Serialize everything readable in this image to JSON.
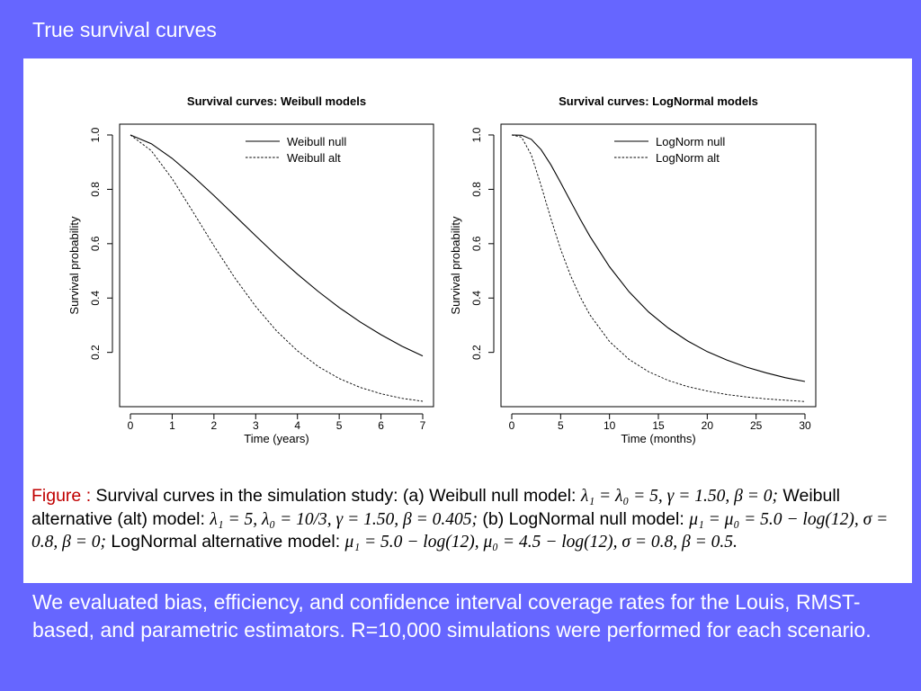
{
  "slide": {
    "title": "True survival curves",
    "body_text": "We evaluated bias, efficiency, and confidence interval coverage rates for the Louis, RMST-based, and parametric estimators.  R=10,000 simulations were performed for each scenario."
  },
  "caption": {
    "lead": "Figure :",
    "p1": " Survival curves in the simulation study: (a) Weibull null model: ",
    "m1": "λ₁ = λ₀ = 5, γ = 1.50, β = 0;",
    "p2": " Weibull alternative (alt) model: ",
    "m2": "λ₁ = 5, λ₀ = 10/3, γ = 1.50, β = 0.405;",
    "p3": " (b) LogNormal null model: ",
    "m3": "μ₁ = μ₀ = 5.0 − log(12), σ = 0.8, β = 0;",
    "p4": " LogNormal alternative model: ",
    "m4": "μ₁ = 5.0 − log(12), μ₀ = 4.5 − log(12), σ = 0.8, β = 0.5."
  },
  "colors": {
    "background": "#6666ff",
    "panel": "#ffffff",
    "caption_lead": "#c00000"
  },
  "chart_data": [
    {
      "type": "line",
      "title": "Survival curves: Weibull models",
      "xlabel": "Time (years)",
      "ylabel": "Survival probability",
      "xlim": [
        0,
        7
      ],
      "ylim": [
        0.04,
        1.0
      ],
      "x_ticks": [
        0,
        1,
        2,
        3,
        4,
        5,
        6,
        7
      ],
      "y_ticks": [
        0.2,
        0.4,
        0.6,
        0.8,
        1.0
      ],
      "y_tick_labels": [
        "0.2",
        "0.4",
        "0.6",
        "0.8",
        "1.0"
      ],
      "grid": false,
      "legend": "top-right",
      "series": [
        {
          "name": "Weibull null",
          "style": "solid",
          "x": [
            0,
            0.5,
            1,
            1.5,
            2,
            2.5,
            3,
            3.5,
            4,
            4.5,
            5,
            5.5,
            6,
            6.5,
            7
          ],
          "y": [
            1.0,
            0.968,
            0.914,
            0.848,
            0.777,
            0.703,
            0.629,
            0.556,
            0.488,
            0.424,
            0.365,
            0.312,
            0.265,
            0.223,
            0.187
          ]
        },
        {
          "name": "Weibull alt",
          "style": "dashed",
          "x": [
            0,
            0.5,
            1,
            1.5,
            2,
            2.5,
            3,
            3.5,
            4,
            4.5,
            5,
            5.5,
            6,
            6.5,
            7
          ],
          "y": [
            1.0,
            0.942,
            0.839,
            0.717,
            0.592,
            0.474,
            0.369,
            0.279,
            0.206,
            0.148,
            0.104,
            0.071,
            0.048,
            0.031,
            0.02
          ]
        }
      ]
    },
    {
      "type": "line",
      "title": "Survival curves: LogNormal models",
      "xlabel": "Time (months)",
      "ylabel": "Survival probability",
      "xlim": [
        0,
        30
      ],
      "ylim": [
        0.04,
        1.0
      ],
      "x_ticks": [
        0,
        5,
        10,
        15,
        20,
        25,
        30
      ],
      "y_ticks": [
        0.2,
        0.4,
        0.6,
        0.8,
        1.0
      ],
      "y_tick_labels": [
        "0.2",
        "0.4",
        "0.6",
        "0.8",
        "1.0"
      ],
      "grid": false,
      "legend": "top-right",
      "series": [
        {
          "name": "LogNorm null",
          "style": "solid",
          "x": [
            0,
            1,
            2,
            3,
            4,
            5,
            6,
            7,
            8,
            10,
            12,
            14,
            16,
            18,
            20,
            22,
            24,
            26,
            28,
            30
          ],
          "y": [
            1.0,
            0.999,
            0.984,
            0.946,
            0.89,
            0.825,
            0.757,
            0.69,
            0.627,
            0.515,
            0.423,
            0.349,
            0.29,
            0.242,
            0.203,
            0.172,
            0.146,
            0.125,
            0.107,
            0.093
          ]
        },
        {
          "name": "LogNorm alt",
          "style": "dashed",
          "x": [
            0,
            1,
            2,
            3,
            4,
            5,
            6,
            7,
            8,
            10,
            12,
            14,
            16,
            18,
            20,
            22,
            24,
            26,
            28,
            30
          ],
          "y": [
            1.0,
            0.992,
            0.927,
            0.814,
            0.692,
            0.58,
            0.484,
            0.404,
            0.338,
            0.24,
            0.174,
            0.129,
            0.097,
            0.074,
            0.058,
            0.045,
            0.036,
            0.029,
            0.024,
            0.019
          ]
        }
      ]
    }
  ]
}
